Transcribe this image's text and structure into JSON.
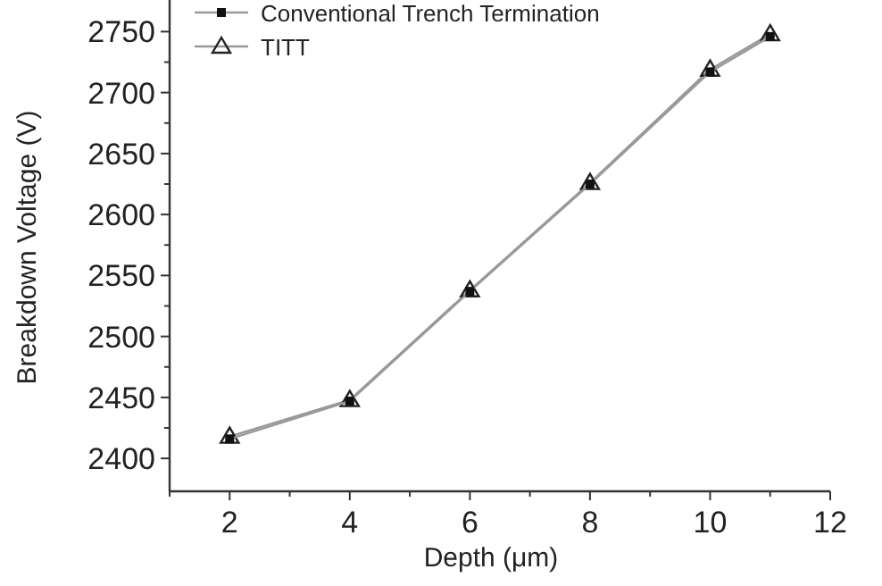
{
  "chart_data": {
    "type": "line",
    "xlabel": "Depth (μm)",
    "ylabel": "Breakdown Voltage (V)",
    "x": [
      2,
      4,
      6,
      8,
      10,
      11
    ],
    "series": [
      {
        "name": "Conventional Trench Termination",
        "color": "#111111",
        "marker": "square",
        "values": [
          2416,
          2447,
          2537,
          2625,
          2717,
          2746
        ]
      },
      {
        "name": "TITT",
        "color": "#222222",
        "marker": "triangle",
        "values": [
          2418,
          2448,
          2538,
          2626,
          2719,
          2748
        ]
      }
    ],
    "xlim": [
      1,
      12
    ],
    "xticks": [
      {
        "value": 1,
        "label": null
      },
      2,
      {
        "value": 3,
        "label": null
      },
      4,
      {
        "value": 5,
        "label": null
      },
      6,
      {
        "value": 7,
        "label": null
      },
      8,
      {
        "value": 9,
        "label": null
      },
      10,
      {
        "value": 11,
        "label": null
      },
      12
    ],
    "ylim": [
      2373,
      2773
    ],
    "yticks": [
      2400,
      {
        "value": 2425,
        "label": null
      },
      2450,
      {
        "value": 2475,
        "label": null
      },
      2500,
      {
        "value": 2525,
        "label": null
      },
      2550,
      {
        "value": 2575,
        "label": null
      },
      2600,
      {
        "value": 2625,
        "label": null
      },
      2650,
      {
        "value": 2675,
        "label": null
      },
      2700,
      {
        "value": 2725,
        "label": null
      },
      2750
    ],
    "grid": false,
    "legend": "top left",
    "line_style": "solid"
  }
}
